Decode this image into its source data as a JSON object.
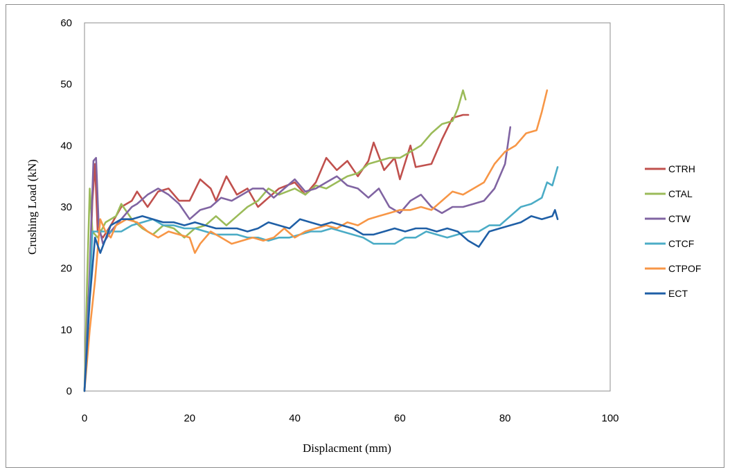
{
  "chart_data": {
    "type": "line",
    "title": "",
    "xlabel": "Displacment (mm)",
    "ylabel": "Crushing Load (kN)",
    "xlim": [
      0,
      100
    ],
    "ylim": [
      0,
      60
    ],
    "xticks": [
      0,
      20,
      40,
      60,
      80,
      100
    ],
    "yticks": [
      0,
      10,
      20,
      30,
      40,
      50,
      60
    ],
    "grid": false,
    "legend_position": "right",
    "series": [
      {
        "name": "CTRH",
        "color": "#c0504d",
        "points": [
          [
            0,
            0
          ],
          [
            0.8,
            14
          ],
          [
            1.5,
            31
          ],
          [
            2,
            37
          ],
          [
            2.5,
            26
          ],
          [
            3.5,
            25
          ],
          [
            5,
            27
          ],
          [
            7,
            30
          ],
          [
            9,
            31
          ],
          [
            10,
            32.5
          ],
          [
            12,
            30
          ],
          [
            14,
            32.5
          ],
          [
            16,
            33
          ],
          [
            18,
            31
          ],
          [
            20,
            31
          ],
          [
            22,
            34.5
          ],
          [
            24,
            33
          ],
          [
            25,
            31
          ],
          [
            27,
            35
          ],
          [
            29,
            32
          ],
          [
            31,
            33
          ],
          [
            33,
            30
          ],
          [
            35,
            31.5
          ],
          [
            37,
            33
          ],
          [
            40,
            34
          ],
          [
            42,
            32
          ],
          [
            44,
            34
          ],
          [
            46,
            38
          ],
          [
            48,
            36
          ],
          [
            50,
            37.5
          ],
          [
            52,
            35
          ],
          [
            54,
            37.5
          ],
          [
            55,
            40.5
          ],
          [
            57,
            36
          ],
          [
            59,
            38
          ],
          [
            60,
            34.5
          ],
          [
            62,
            40
          ],
          [
            63,
            36.5
          ],
          [
            66,
            37
          ],
          [
            68,
            41
          ],
          [
            70,
            44.5
          ],
          [
            72,
            45
          ],
          [
            73,
            45
          ]
        ]
      },
      {
        "name": "CTAL",
        "color": "#9bbb59",
        "points": [
          [
            0,
            0
          ],
          [
            0.5,
            18
          ],
          [
            1,
            33
          ],
          [
            1.5,
            26
          ],
          [
            2.5,
            25
          ],
          [
            4,
            27.5
          ],
          [
            6,
            28.5
          ],
          [
            7,
            30.5
          ],
          [
            9,
            28
          ],
          [
            11,
            26.5
          ],
          [
            13,
            25.5
          ],
          [
            15,
            27
          ],
          [
            17,
            26.5
          ],
          [
            19,
            25
          ],
          [
            21,
            26.5
          ],
          [
            23,
            27
          ],
          [
            25,
            28.5
          ],
          [
            27,
            27
          ],
          [
            29,
            28.5
          ],
          [
            31,
            30
          ],
          [
            33,
            31
          ],
          [
            35,
            33
          ],
          [
            37,
            32
          ],
          [
            40,
            33
          ],
          [
            42,
            32
          ],
          [
            44,
            33.5
          ],
          [
            46,
            33
          ],
          [
            48,
            34
          ],
          [
            50,
            35
          ],
          [
            52,
            35.5
          ],
          [
            54,
            37
          ],
          [
            56,
            37.5
          ],
          [
            58,
            38
          ],
          [
            60,
            38
          ],
          [
            62,
            39
          ],
          [
            64,
            40
          ],
          [
            66,
            42
          ],
          [
            68,
            43.5
          ],
          [
            70,
            44
          ],
          [
            71,
            46
          ],
          [
            72,
            49
          ],
          [
            72.5,
            47.5
          ]
        ]
      },
      {
        "name": "CTW",
        "color": "#8064a2",
        "points": [
          [
            0,
            0
          ],
          [
            1,
            20
          ],
          [
            1.7,
            37.5
          ],
          [
            2.2,
            38
          ],
          [
            2.7,
            27
          ],
          [
            3.5,
            24
          ],
          [
            5,
            26
          ],
          [
            7,
            28
          ],
          [
            9,
            30
          ],
          [
            10,
            30.5
          ],
          [
            12,
            32
          ],
          [
            14,
            33
          ],
          [
            16,
            32
          ],
          [
            18,
            30.5
          ],
          [
            20,
            28
          ],
          [
            22,
            29.5
          ],
          [
            24,
            30
          ],
          [
            26,
            31.5
          ],
          [
            28,
            31
          ],
          [
            30,
            32
          ],
          [
            32,
            33
          ],
          [
            34,
            33
          ],
          [
            36,
            31.5
          ],
          [
            38,
            33
          ],
          [
            40,
            34.5
          ],
          [
            42,
            32.5
          ],
          [
            44,
            33
          ],
          [
            46,
            34
          ],
          [
            48,
            35
          ],
          [
            50,
            33.5
          ],
          [
            52,
            33
          ],
          [
            54,
            31.5
          ],
          [
            56,
            33
          ],
          [
            58,
            30
          ],
          [
            60,
            29
          ],
          [
            62,
            31
          ],
          [
            64,
            32
          ],
          [
            66,
            30
          ],
          [
            68,
            29
          ],
          [
            70,
            30
          ],
          [
            72,
            30
          ],
          [
            74,
            30.5
          ],
          [
            76,
            31
          ],
          [
            78,
            33
          ],
          [
            80,
            37
          ],
          [
            81,
            43
          ]
        ]
      },
      {
        "name": "CTCF",
        "color": "#4bacc6",
        "points": [
          [
            0,
            0
          ],
          [
            1,
            16
          ],
          [
            1.5,
            26
          ],
          [
            3,
            26
          ],
          [
            5,
            26
          ],
          [
            7,
            26
          ],
          [
            9,
            27
          ],
          [
            11,
            27.5
          ],
          [
            13,
            28
          ],
          [
            15,
            27
          ],
          [
            17,
            27
          ],
          [
            19,
            26.5
          ],
          [
            21,
            26.5
          ],
          [
            23,
            26
          ],
          [
            25,
            25.5
          ],
          [
            27,
            25.5
          ],
          [
            29,
            25.5
          ],
          [
            31,
            25
          ],
          [
            33,
            25
          ],
          [
            35,
            24.5
          ],
          [
            37,
            25
          ],
          [
            39,
            25
          ],
          [
            41,
            25.5
          ],
          [
            43,
            26
          ],
          [
            45,
            26
          ],
          [
            47,
            26.5
          ],
          [
            49,
            26
          ],
          [
            51,
            25.5
          ],
          [
            53,
            25
          ],
          [
            55,
            24
          ],
          [
            57,
            24
          ],
          [
            59,
            24
          ],
          [
            61,
            25
          ],
          [
            63,
            25
          ],
          [
            65,
            26
          ],
          [
            67,
            25.5
          ],
          [
            69,
            25
          ],
          [
            71,
            25.5
          ],
          [
            73,
            26
          ],
          [
            75,
            26
          ],
          [
            77,
            27
          ],
          [
            79,
            27
          ],
          [
            81,
            28.5
          ],
          [
            83,
            30
          ],
          [
            85,
            30.5
          ],
          [
            87,
            31.5
          ],
          [
            88,
            34
          ],
          [
            89,
            33.5
          ],
          [
            90,
            36.5
          ]
        ]
      },
      {
        "name": "CTPOF",
        "color": "#f79646",
        "points": [
          [
            0,
            0
          ],
          [
            1,
            10
          ],
          [
            2,
            18
          ],
          [
            2.5,
            23
          ],
          [
            3,
            28
          ],
          [
            4,
            26
          ],
          [
            5,
            25
          ],
          [
            6,
            27
          ],
          [
            8,
            28
          ],
          [
            10,
            27.5
          ],
          [
            12,
            26
          ],
          [
            14,
            25
          ],
          [
            16,
            26
          ],
          [
            18,
            25.5
          ],
          [
            20,
            25
          ],
          [
            21,
            22.5
          ],
          [
            22,
            24
          ],
          [
            24,
            26
          ],
          [
            26,
            25
          ],
          [
            28,
            24
          ],
          [
            30,
            24.5
          ],
          [
            32,
            25
          ],
          [
            34,
            24.5
          ],
          [
            36,
            25
          ],
          [
            38,
            26.5
          ],
          [
            40,
            25
          ],
          [
            42,
            26
          ],
          [
            44,
            26.5
          ],
          [
            46,
            27
          ],
          [
            48,
            26.5
          ],
          [
            50,
            27.5
          ],
          [
            52,
            27
          ],
          [
            54,
            28
          ],
          [
            56,
            28.5
          ],
          [
            58,
            29
          ],
          [
            60,
            29.5
          ],
          [
            62,
            29.5
          ],
          [
            64,
            30
          ],
          [
            66,
            29.5
          ],
          [
            68,
            31
          ],
          [
            70,
            32.5
          ],
          [
            72,
            32
          ],
          [
            74,
            33
          ],
          [
            76,
            34
          ],
          [
            78,
            37
          ],
          [
            80,
            39
          ],
          [
            82,
            40
          ],
          [
            84,
            42
          ],
          [
            86,
            42.5
          ],
          [
            87,
            45.5
          ],
          [
            88,
            49
          ]
        ]
      },
      {
        "name": "ECT",
        "color": "#1f5fa6",
        "points": [
          [
            0,
            0
          ],
          [
            1,
            15
          ],
          [
            2,
            25
          ],
          [
            3,
            22.5
          ],
          [
            5,
            27
          ],
          [
            7,
            28
          ],
          [
            9,
            28
          ],
          [
            11,
            28.5
          ],
          [
            13,
            28
          ],
          [
            15,
            27.5
          ],
          [
            17,
            27.5
          ],
          [
            19,
            27
          ],
          [
            21,
            27.5
          ],
          [
            23,
            27
          ],
          [
            25,
            26.5
          ],
          [
            27,
            26.5
          ],
          [
            29,
            26.5
          ],
          [
            31,
            26
          ],
          [
            33,
            26.5
          ],
          [
            35,
            27.5
          ],
          [
            37,
            27
          ],
          [
            39,
            26.5
          ],
          [
            41,
            28
          ],
          [
            43,
            27.5
          ],
          [
            45,
            27
          ],
          [
            47,
            27.5
          ],
          [
            49,
            27
          ],
          [
            51,
            26.5
          ],
          [
            53,
            25.5
          ],
          [
            55,
            25.5
          ],
          [
            57,
            26
          ],
          [
            59,
            26.5
          ],
          [
            61,
            26
          ],
          [
            63,
            26.5
          ],
          [
            65,
            26.5
          ],
          [
            67,
            26
          ],
          [
            69,
            26.5
          ],
          [
            71,
            26
          ],
          [
            73,
            24.5
          ],
          [
            75,
            23.5
          ],
          [
            77,
            26
          ],
          [
            79,
            26.5
          ],
          [
            81,
            27
          ],
          [
            83,
            27.5
          ],
          [
            85,
            28.5
          ],
          [
            87,
            28
          ],
          [
            89,
            28.5
          ],
          [
            89.5,
            29.5
          ],
          [
            90,
            28
          ]
        ]
      }
    ]
  }
}
